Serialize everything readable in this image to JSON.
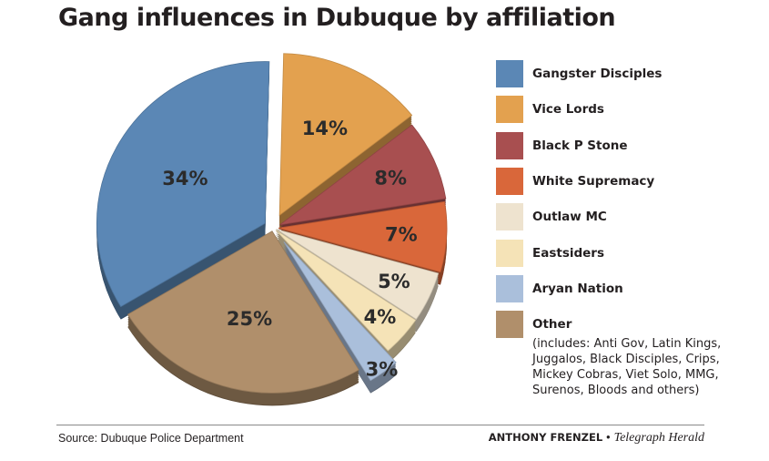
{
  "chart_data": {
    "type": "pie",
    "title": "Gang influences in Dubuque by affiliation",
    "slices": [
      {
        "name": "Gangster Disciples",
        "value": 34,
        "label": "34%",
        "color": "#5b87b5"
      },
      {
        "name": "Vice Lords",
        "value": 14,
        "label": "14%",
        "color": "#e3a14f"
      },
      {
        "name": "Black P Stone",
        "value": 8,
        "label": "8%",
        "color": "#a84f50"
      },
      {
        "name": "White Supremacy",
        "value": 7,
        "label": "7%",
        "color": "#d9673a"
      },
      {
        "name": "Outlaw MC",
        "value": 5,
        "label": "5%",
        "color": "#eee3cf"
      },
      {
        "name": "Eastsiders",
        "value": 4,
        "label": "4%",
        "color": "#f5e3b7"
      },
      {
        "name": "Aryan Nation",
        "value": 3,
        "label": "3%",
        "color": "#aabfdb"
      },
      {
        "name": "Other",
        "value": 25,
        "label": "25%",
        "color": "#b08f6b"
      }
    ],
    "legend_position": "right",
    "exploded_3d": true
  },
  "legend": {
    "other_note": "(includes: Anti Gov, Latin Kings, Juggalos, Black Disciples, Crips, Mickey Cobras, Viet Solo, MMG, Surenos, Bloods and others)"
  },
  "footer": {
    "source": "Source: Dubuque Police Department",
    "credit_name": "ANTHONY FRENZEL",
    "credit_separator": "•",
    "credit_paper": "Telegraph Herald"
  }
}
